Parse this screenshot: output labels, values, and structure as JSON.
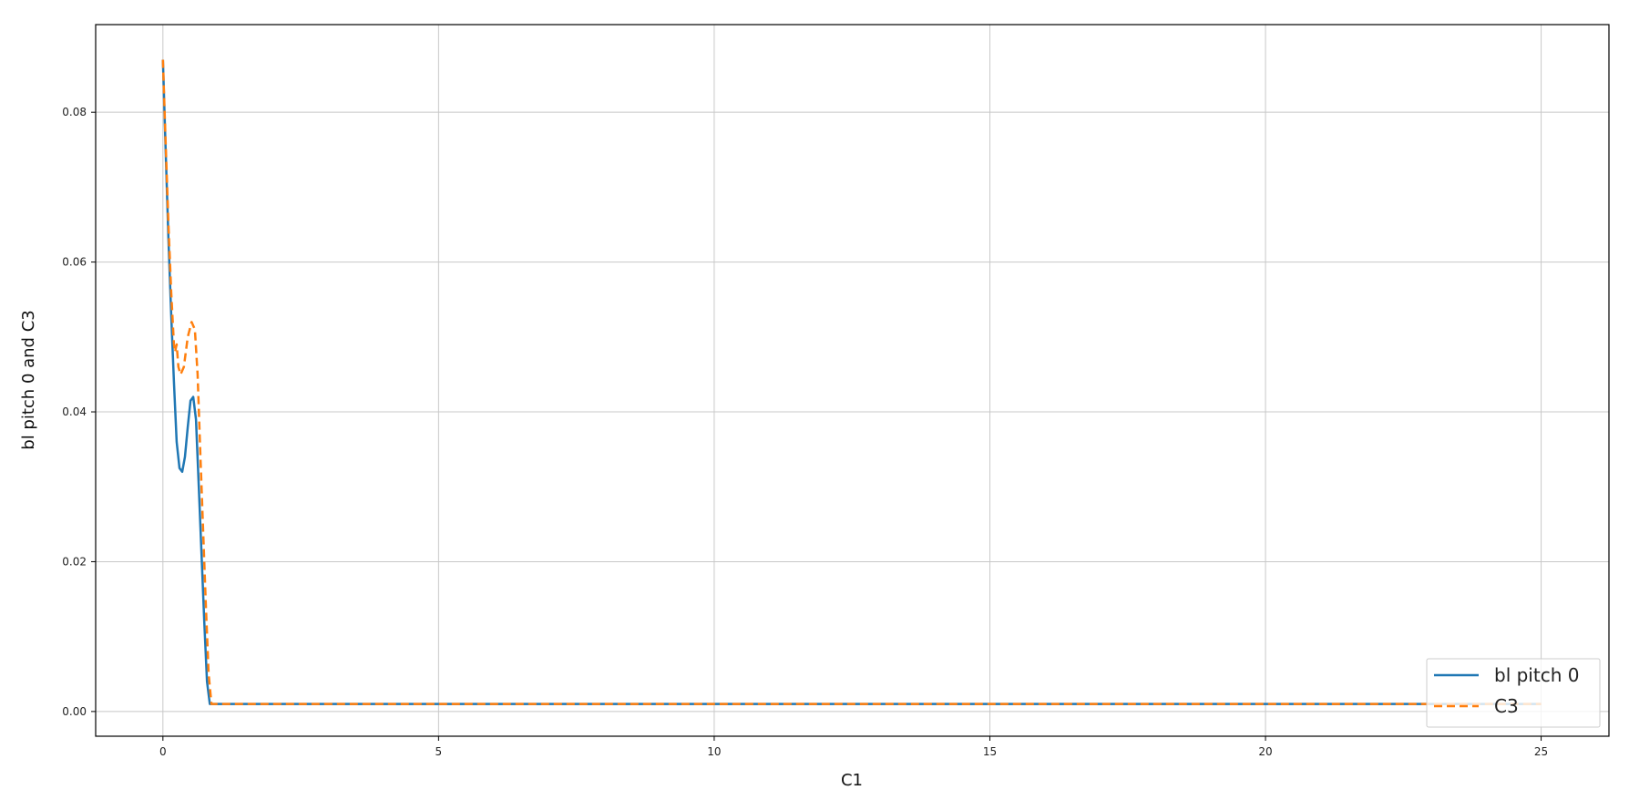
{
  "chart_data": {
    "type": "line",
    "title": "",
    "xlabel": "C1",
    "ylabel": "bl pitch 0 and C3",
    "xlim": [
      -1.22,
      26.23
    ],
    "ylim": [
      -0.0033,
      0.0917
    ],
    "xticks": [
      0,
      5,
      10,
      15,
      20,
      25
    ],
    "xtick_labels": [
      "0",
      "5",
      "10",
      "15",
      "20",
      "25"
    ],
    "yticks": [
      0,
      0.02,
      0.04,
      0.06,
      0.08
    ],
    "ytick_labels": [
      "0.00",
      "0.02",
      "0.04",
      "0.06",
      "0.08"
    ],
    "grid": true,
    "legend_position": "lower-right",
    "series": [
      {
        "name": "bl pitch 0",
        "color": "#1f77b4",
        "style": "solid",
        "points": [
          [
            0,
            0.087
          ],
          [
            0.05,
            0.075
          ],
          [
            0.1,
            0.063
          ],
          [
            0.15,
            0.053
          ],
          [
            0.2,
            0.044
          ],
          [
            0.25,
            0.036
          ],
          [
            0.3,
            0.0325
          ],
          [
            0.35,
            0.032
          ],
          [
            0.4,
            0.034
          ],
          [
            0.45,
            0.038
          ],
          [
            0.5,
            0.0415
          ],
          [
            0.55,
            0.042
          ],
          [
            0.6,
            0.039
          ],
          [
            0.65,
            0.03
          ],
          [
            0.7,
            0.021
          ],
          [
            0.75,
            0.012
          ],
          [
            0.8,
            0.004
          ],
          [
            0.85,
            0.001
          ],
          [
            25,
            0.001
          ]
        ]
      },
      {
        "name": "C3",
        "color": "#ff7f0e",
        "style": "dashed",
        "points": [
          [
            0,
            0.087
          ],
          [
            0.05,
            0.076
          ],
          [
            0.1,
            0.065
          ],
          [
            0.15,
            0.056
          ],
          [
            0.2,
            0.049
          ],
          [
            0.22,
            0.048
          ],
          [
            0.25,
            0.049
          ],
          [
            0.28,
            0.046
          ],
          [
            0.32,
            0.045
          ],
          [
            0.38,
            0.046
          ],
          [
            0.45,
            0.05
          ],
          [
            0.52,
            0.052
          ],
          [
            0.58,
            0.051
          ],
          [
            0.63,
            0.045
          ],
          [
            0.68,
            0.034
          ],
          [
            0.73,
            0.024
          ],
          [
            0.78,
            0.014
          ],
          [
            0.83,
            0.005
          ],
          [
            0.88,
            0.001
          ],
          [
            25,
            0.001
          ]
        ]
      }
    ]
  }
}
